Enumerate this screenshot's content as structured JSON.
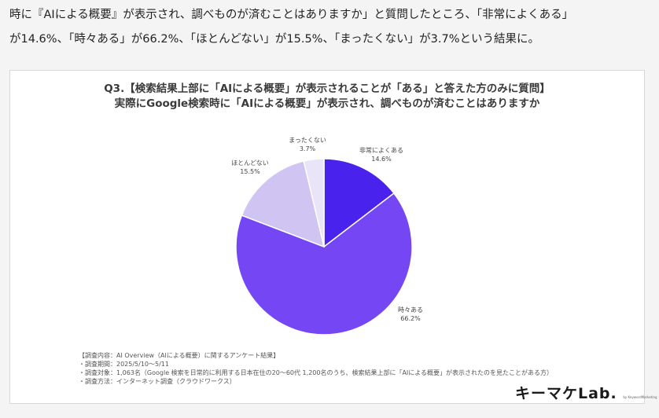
{
  "intro": {
    "line1": "時に『AIによる概要』が表示され、調べものが済むことはありますか」と質問したところ、「非常によくある」",
    "line2": "が14.6%、「時々ある」が66.2%、「ほとんどない」が15.5%、「まったくない」が3.7%という結果に。"
  },
  "chart_data": {
    "type": "pie",
    "title": "Q3.【検索結果上部に「AIによる概要」が表示されることが「ある」と答えた方のみに質問】",
    "subtitle": "実際にGoogle検索時に「AIによる概要」が表示され、調べものが済むことはありますか",
    "start": "12 o'clock, clockwise",
    "slices": [
      {
        "label": "非常によくある",
        "value": 14.6,
        "value_label": "14.6%",
        "color": "#4a22ee"
      },
      {
        "label": "時々ある",
        "value": 66.2,
        "value_label": "66.2%",
        "color": "#7446f4"
      },
      {
        "label": "ほとんどない",
        "value": 15.5,
        "value_label": "15.5%",
        "color": "#cfc4f2"
      },
      {
        "label": "まったくない",
        "value": 3.7,
        "value_label": "3.7%",
        "color": "#e9e4f8"
      }
    ]
  },
  "notes": [
    "【調査内容：AI Overview（AIによる概要）に関するアンケート結果】",
    "・調査期間：2025/5/10～5/11",
    "・調査対象：1,063名（Google 検索を日常的に利用する日本在住の20～60代 1,200名のうち、検索結果上部に「AIによる概要」が表示されたのを見たことがある方）",
    "・調査方法：インターネット調査（クラウドワークス）"
  ],
  "logo": {
    "text": "キーマケLab.",
    "sub": "by KeywordMarketing"
  }
}
